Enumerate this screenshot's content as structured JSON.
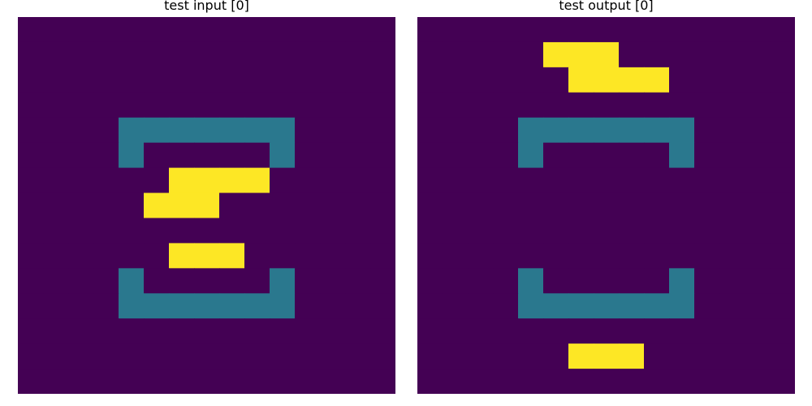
{
  "palette": {
    "0": "#440154",
    "1": "#2a788e",
    "2": "#fde725"
  },
  "panels": [
    {
      "title": "test input [0]",
      "rows": 15,
      "cols": 15,
      "cells": [
        [
          0,
          0,
          0,
          0,
          0,
          0,
          0,
          0,
          0,
          0,
          0,
          0,
          0,
          0,
          0
        ],
        [
          0,
          0,
          0,
          0,
          0,
          0,
          0,
          0,
          0,
          0,
          0,
          0,
          0,
          0,
          0
        ],
        [
          0,
          0,
          0,
          0,
          0,
          0,
          0,
          0,
          0,
          0,
          0,
          0,
          0,
          0,
          0
        ],
        [
          0,
          0,
          0,
          0,
          0,
          0,
          0,
          0,
          0,
          0,
          0,
          0,
          0,
          0,
          0
        ],
        [
          0,
          0,
          0,
          0,
          1,
          1,
          1,
          1,
          1,
          1,
          1,
          0,
          0,
          0,
          0
        ],
        [
          0,
          0,
          0,
          0,
          1,
          0,
          0,
          0,
          0,
          0,
          1,
          0,
          0,
          0,
          0
        ],
        [
          0,
          0,
          0,
          0,
          0,
          0,
          2,
          2,
          2,
          2,
          0,
          0,
          0,
          0,
          0
        ],
        [
          0,
          0,
          0,
          0,
          0,
          2,
          2,
          2,
          0,
          0,
          0,
          0,
          0,
          0,
          0
        ],
        [
          0,
          0,
          0,
          0,
          0,
          0,
          0,
          0,
          0,
          0,
          0,
          0,
          0,
          0,
          0
        ],
        [
          0,
          0,
          0,
          0,
          0,
          0,
          2,
          2,
          2,
          0,
          0,
          0,
          0,
          0,
          0
        ],
        [
          0,
          0,
          0,
          0,
          1,
          0,
          0,
          0,
          0,
          0,
          1,
          0,
          0,
          0,
          0
        ],
        [
          0,
          0,
          0,
          0,
          1,
          1,
          1,
          1,
          1,
          1,
          1,
          0,
          0,
          0,
          0
        ],
        [
          0,
          0,
          0,
          0,
          0,
          0,
          0,
          0,
          0,
          0,
          0,
          0,
          0,
          0,
          0
        ],
        [
          0,
          0,
          0,
          0,
          0,
          0,
          0,
          0,
          0,
          0,
          0,
          0,
          0,
          0,
          0
        ],
        [
          0,
          0,
          0,
          0,
          0,
          0,
          0,
          0,
          0,
          0,
          0,
          0,
          0,
          0,
          0
        ]
      ]
    },
    {
      "title": "test output [0]",
      "rows": 15,
      "cols": 15,
      "cells": [
        [
          0,
          0,
          0,
          0,
          0,
          0,
          0,
          0,
          0,
          0,
          0,
          0,
          0,
          0,
          0
        ],
        [
          0,
          0,
          0,
          0,
          0,
          2,
          2,
          2,
          0,
          0,
          0,
          0,
          0,
          0,
          0
        ],
        [
          0,
          0,
          0,
          0,
          0,
          0,
          2,
          2,
          2,
          2,
          0,
          0,
          0,
          0,
          0
        ],
        [
          0,
          0,
          0,
          0,
          0,
          0,
          0,
          0,
          0,
          0,
          0,
          0,
          0,
          0,
          0
        ],
        [
          0,
          0,
          0,
          0,
          1,
          1,
          1,
          1,
          1,
          1,
          1,
          0,
          0,
          0,
          0
        ],
        [
          0,
          0,
          0,
          0,
          1,
          0,
          0,
          0,
          0,
          0,
          1,
          0,
          0,
          0,
          0
        ],
        [
          0,
          0,
          0,
          0,
          0,
          0,
          0,
          0,
          0,
          0,
          0,
          0,
          0,
          0,
          0
        ],
        [
          0,
          0,
          0,
          0,
          0,
          0,
          0,
          0,
          0,
          0,
          0,
          0,
          0,
          0,
          0
        ],
        [
          0,
          0,
          0,
          0,
          0,
          0,
          0,
          0,
          0,
          0,
          0,
          0,
          0,
          0,
          0
        ],
        [
          0,
          0,
          0,
          0,
          0,
          0,
          0,
          0,
          0,
          0,
          0,
          0,
          0,
          0,
          0
        ],
        [
          0,
          0,
          0,
          0,
          1,
          0,
          0,
          0,
          0,
          0,
          1,
          0,
          0,
          0,
          0
        ],
        [
          0,
          0,
          0,
          0,
          1,
          1,
          1,
          1,
          1,
          1,
          1,
          0,
          0,
          0,
          0
        ],
        [
          0,
          0,
          0,
          0,
          0,
          0,
          0,
          0,
          0,
          0,
          0,
          0,
          0,
          0,
          0
        ],
        [
          0,
          0,
          0,
          0,
          0,
          0,
          2,
          2,
          2,
          0,
          0,
          0,
          0,
          0,
          0
        ],
        [
          0,
          0,
          0,
          0,
          0,
          0,
          0,
          0,
          0,
          0,
          0,
          0,
          0,
          0,
          0
        ]
      ]
    }
  ]
}
